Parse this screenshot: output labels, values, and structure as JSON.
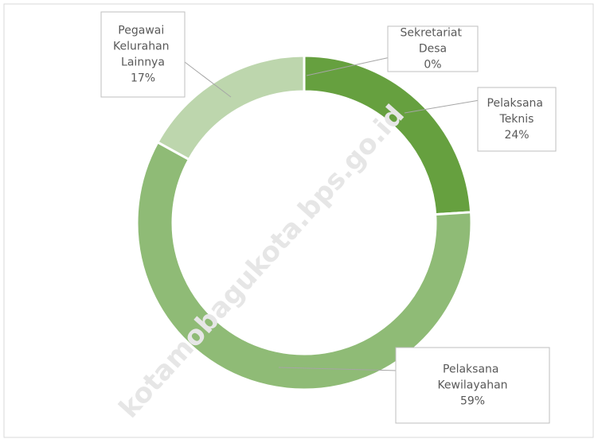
{
  "chart_data": {
    "type": "donut",
    "categories": [
      "Sekretariat Desa",
      "Pelaksana Teknis",
      "Pelaksana Kewilayahan",
      "Pegawai Kelurahan Lainnya"
    ],
    "values": [
      0,
      24,
      59,
      17
    ],
    "value_labels": [
      "0%",
      "24%",
      "59%",
      "17%"
    ],
    "colors": [
      "#4e7f2f",
      "#66a03f",
      "#8fbb76",
      "#bdd6ad"
    ],
    "watermark": "kotamobagukota.bps.go.id"
  }
}
